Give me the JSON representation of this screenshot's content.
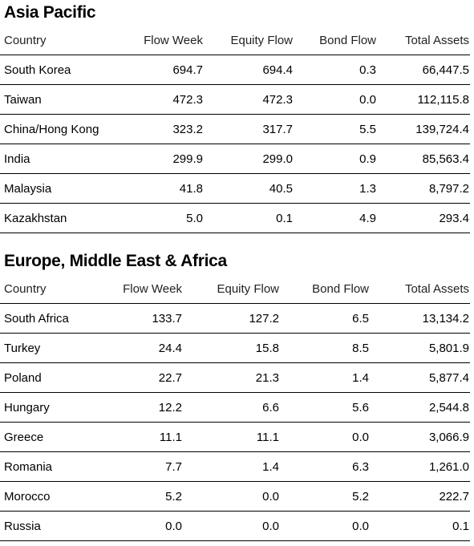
{
  "sections": [
    {
      "title": "Asia Pacific",
      "headers": [
        "Country",
        "Flow Week",
        "Equity Flow",
        "Bond Flow",
        "Total Assets"
      ],
      "rows": [
        [
          "South Korea",
          "694.7",
          "694.4",
          "0.3",
          "66,447.5"
        ],
        [
          "Taiwan",
          "472.3",
          "472.3",
          "0.0",
          "112,115.8"
        ],
        [
          "China/Hong Kong",
          "323.2",
          "317.7",
          "5.5",
          "139,724.4"
        ],
        [
          "India",
          "299.9",
          "299.0",
          "0.9",
          "85,563.4"
        ],
        [
          "Malaysia",
          "41.8",
          "40.5",
          "1.3",
          "8,797.2"
        ],
        [
          "Kazakhstan",
          "5.0",
          "0.1",
          "4.9",
          "293.4"
        ]
      ]
    },
    {
      "title": "Europe, Middle East & Africa",
      "headers": [
        "Country",
        "Flow Week",
        "Equity Flow",
        "Bond Flow",
        "Total Assets"
      ],
      "rows": [
        [
          "South Africa",
          "133.7",
          "127.2",
          "6.5",
          "13,134.2"
        ],
        [
          "Turkey",
          "24.4",
          "15.8",
          "8.5",
          "5,801.9"
        ],
        [
          "Poland",
          "22.7",
          "21.3",
          "1.4",
          "5,877.4"
        ],
        [
          "Hungary",
          "12.2",
          "6.6",
          "5.6",
          "2,544.8"
        ],
        [
          "Greece",
          "11.1",
          "11.1",
          "0.0",
          "3,066.9"
        ],
        [
          "Romania",
          "7.7",
          "1.4",
          "6.3",
          "1,261.0"
        ],
        [
          "Morocco",
          "5.2",
          "0.0",
          "5.2",
          "222.7"
        ],
        [
          "Russia",
          "0.0",
          "0.0",
          "0.0",
          "0.1"
        ]
      ]
    }
  ]
}
